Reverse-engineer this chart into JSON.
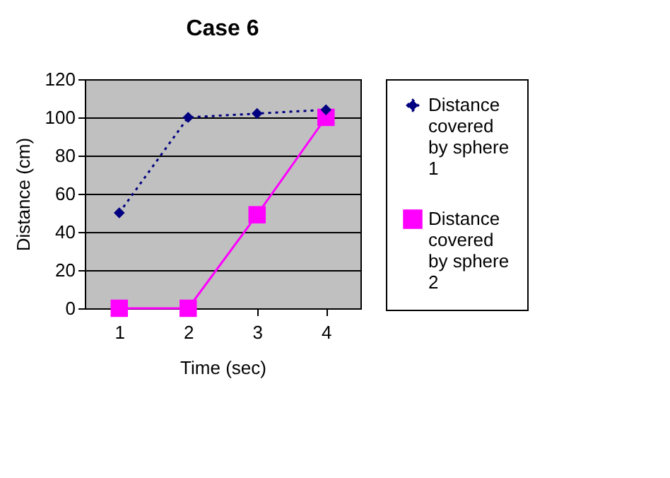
{
  "chart_data": {
    "type": "line",
    "title": "Case 6",
    "xlabel": "Time (sec)",
    "ylabel": "Distance (cm)",
    "categories": [
      "1",
      "2",
      "3",
      "4"
    ],
    "ylim": [
      0,
      120
    ],
    "yticks": [
      0,
      20,
      40,
      60,
      80,
      100,
      120
    ],
    "grid": "y",
    "legend": "right",
    "series": [
      {
        "name": "Distance covered by sphere 1",
        "color": "#000080",
        "values": [
          50,
          100,
          102,
          104
        ],
        "marker": "diamond",
        "line_style": "dotted"
      },
      {
        "name": "Distance covered by sphere 2",
        "color": "#ff00ff",
        "values": [
          0,
          0,
          49,
          100
        ],
        "marker": "square",
        "line_style": "solid"
      }
    ]
  }
}
